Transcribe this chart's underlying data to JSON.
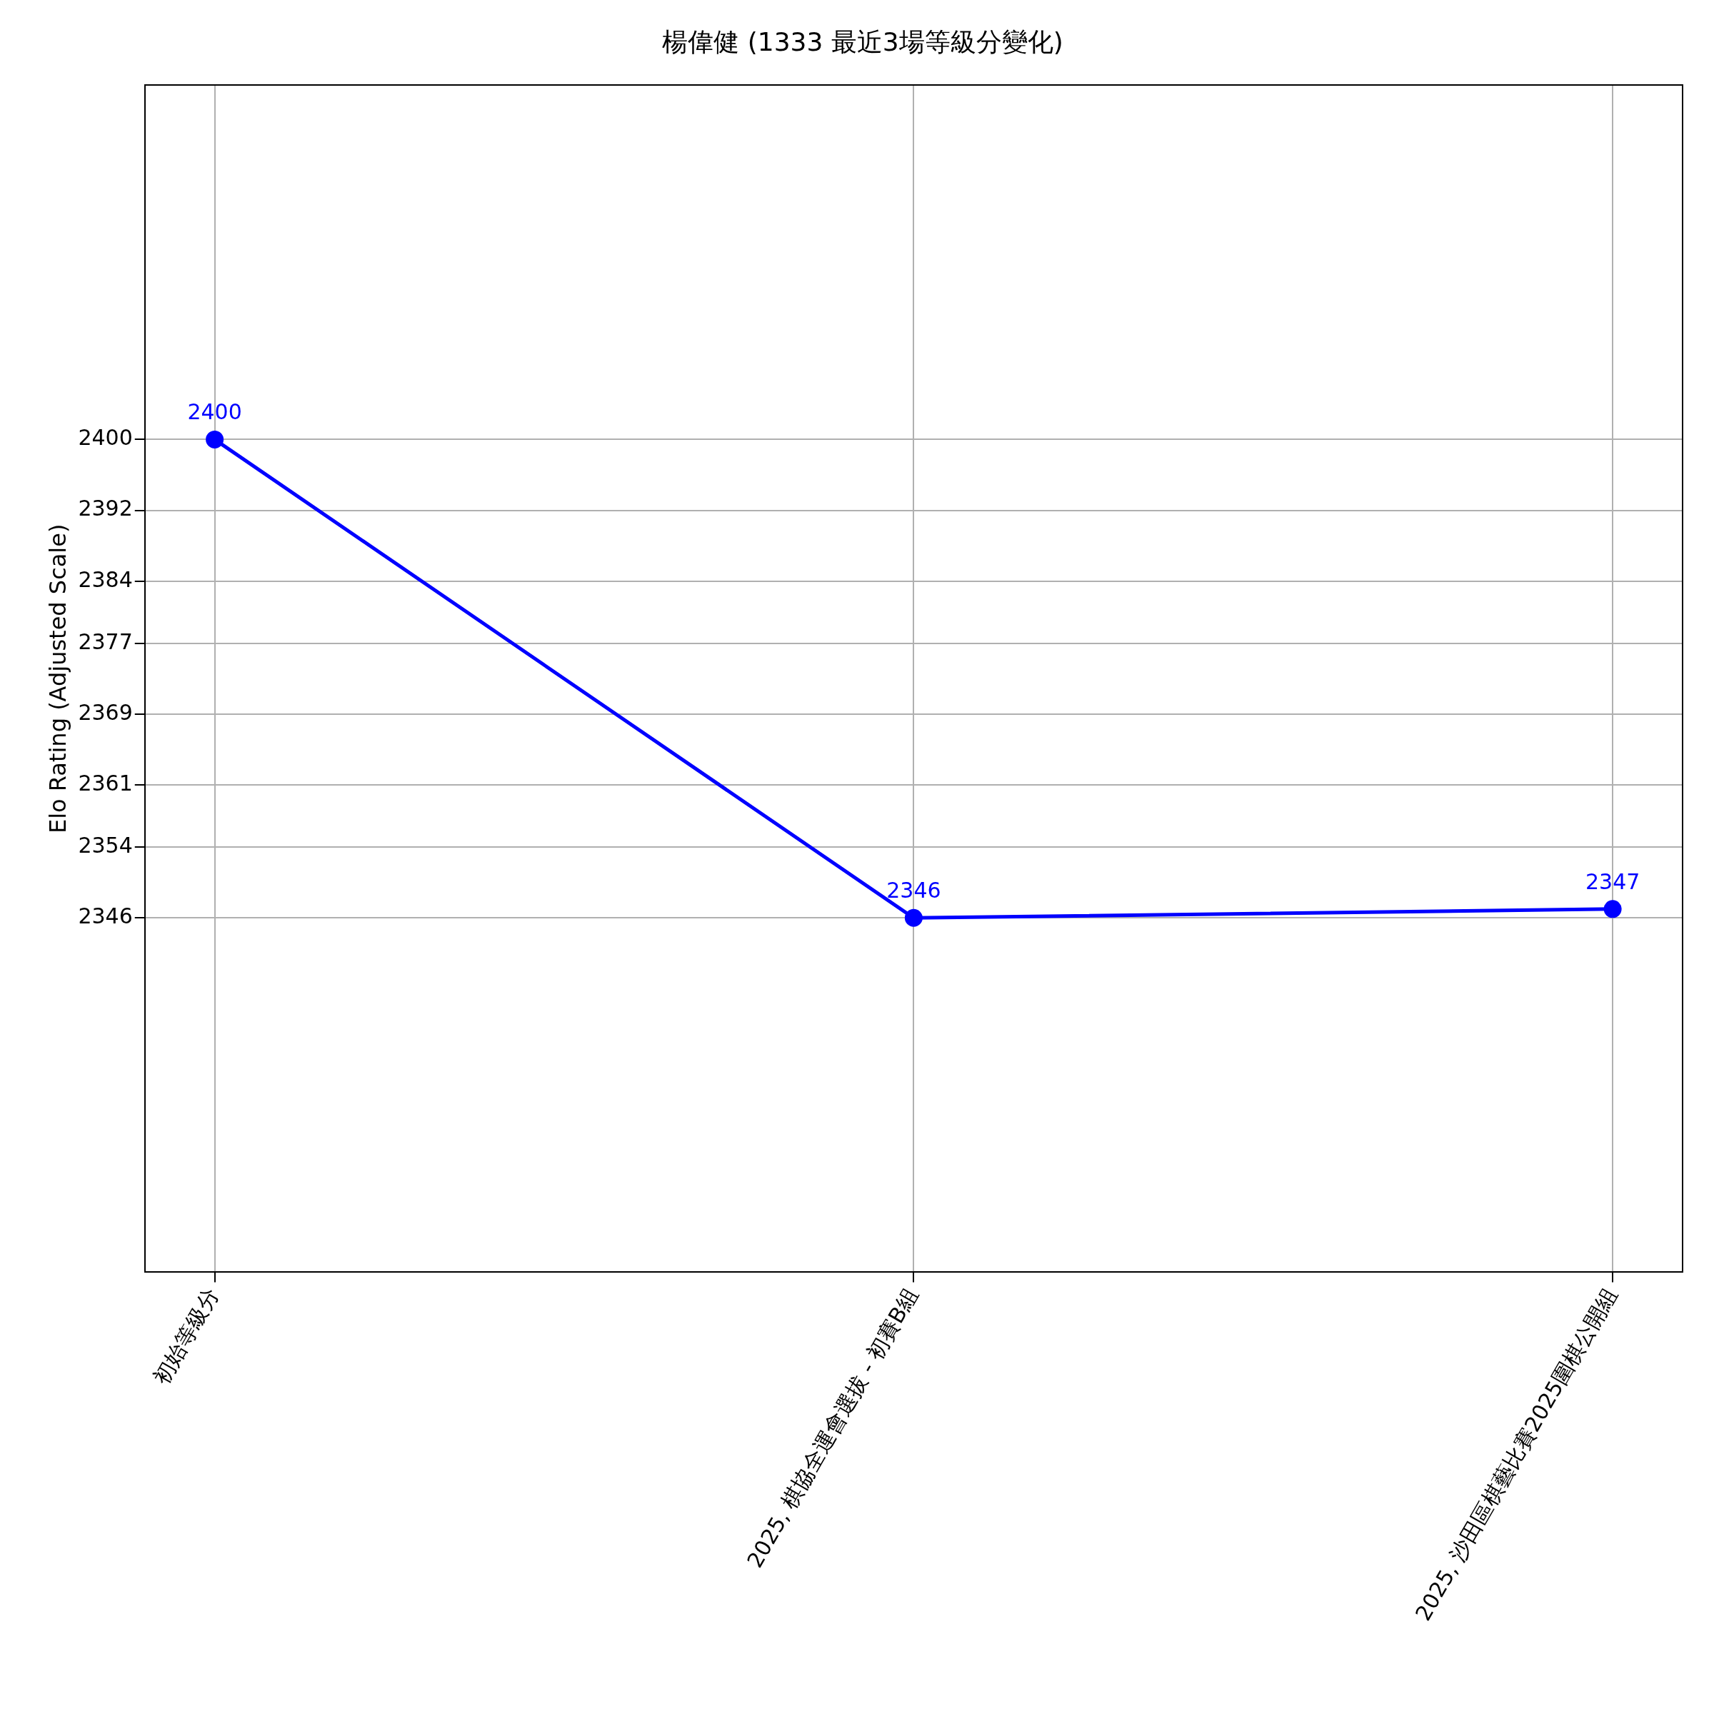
{
  "chart_data": {
    "type": "line",
    "title": "楊偉健 (1333 最近3場等級分變化)",
    "ylabel": "Elo Rating (Adjusted Scale)",
    "categories": [
      "初始等級分",
      "2025, 棋協全運會選拔 - 初賽B組",
      "2025, 沙田區棋藝比賽2025圍棋公開組"
    ],
    "series": [
      {
        "color": "#0000ff",
        "values": [
          2400,
          2346,
          2347
        ]
      }
    ],
    "ylim": [
      2306,
      2440
    ],
    "yticks": [
      2346,
      2354,
      2361,
      2369,
      2377,
      2384,
      2392,
      2400
    ],
    "data_labels": true,
    "grid": true,
    "legend": false,
    "marker": "circle",
    "line_style": "solid"
  }
}
